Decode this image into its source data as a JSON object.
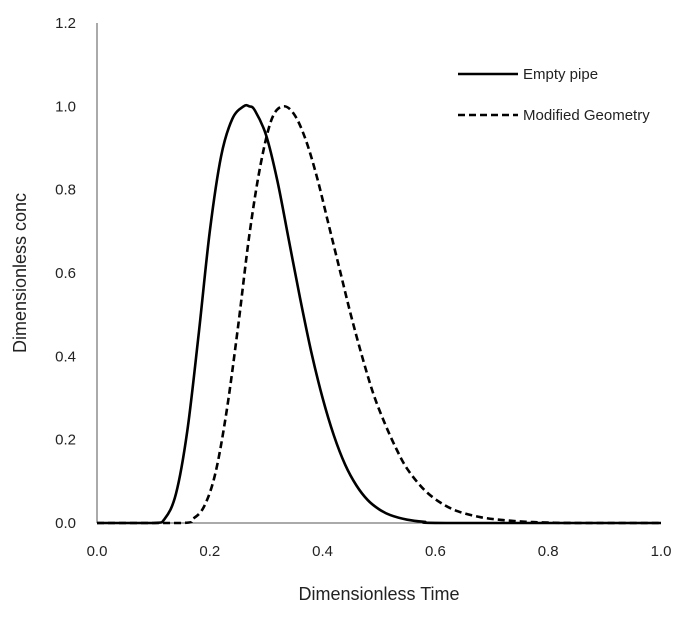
{
  "chart_data": {
    "type": "line",
    "title": "",
    "xlabel": "Dimensionless Time",
    "ylabel": "Dimensionless conc",
    "xlim": [
      0.0,
      1.0
    ],
    "ylim": [
      0.0,
      1.2
    ],
    "x_ticks": [
      "0.0",
      "0.2",
      "0.4",
      "0.6",
      "0.8",
      "1.0"
    ],
    "y_ticks": [
      "0.0",
      "0.2",
      "0.4",
      "0.6",
      "0.8",
      "1.0",
      "1.2"
    ],
    "grid": false,
    "legend_position": "top-right",
    "series": [
      {
        "name": "Empty pipe",
        "style": "solid",
        "color": "#000000",
        "x": [
          0.0,
          0.1,
          0.12,
          0.14,
          0.16,
          0.18,
          0.2,
          0.22,
          0.24,
          0.26,
          0.27,
          0.28,
          0.3,
          0.32,
          0.34,
          0.36,
          0.38,
          0.4,
          0.42,
          0.44,
          0.46,
          0.48,
          0.5,
          0.52,
          0.55,
          0.58,
          0.62,
          1.0
        ],
        "y": [
          0.0,
          0.0,
          0.01,
          0.07,
          0.22,
          0.45,
          0.7,
          0.88,
          0.97,
          1.0,
          1.0,
          0.99,
          0.93,
          0.82,
          0.68,
          0.54,
          0.41,
          0.3,
          0.21,
          0.14,
          0.09,
          0.055,
          0.033,
          0.019,
          0.008,
          0.003,
          0.0,
          0.0
        ]
      },
      {
        "name": "Modified Geometry",
        "style": "dashed",
        "color": "#000000",
        "x": [
          0.0,
          0.15,
          0.17,
          0.19,
          0.21,
          0.23,
          0.25,
          0.27,
          0.29,
          0.31,
          0.33,
          0.35,
          0.37,
          0.39,
          0.41,
          0.43,
          0.45,
          0.47,
          0.49,
          0.51,
          0.53,
          0.55,
          0.58,
          0.61,
          0.64,
          0.68,
          0.72,
          0.76,
          0.8,
          0.85,
          1.0
        ],
        "y": [
          0.0,
          0.0,
          0.01,
          0.04,
          0.12,
          0.27,
          0.47,
          0.69,
          0.86,
          0.97,
          1.0,
          0.98,
          0.92,
          0.83,
          0.72,
          0.61,
          0.5,
          0.4,
          0.31,
          0.24,
          0.18,
          0.13,
          0.08,
          0.048,
          0.028,
          0.014,
          0.007,
          0.003,
          0.001,
          0.0,
          0.0
        ]
      }
    ]
  }
}
